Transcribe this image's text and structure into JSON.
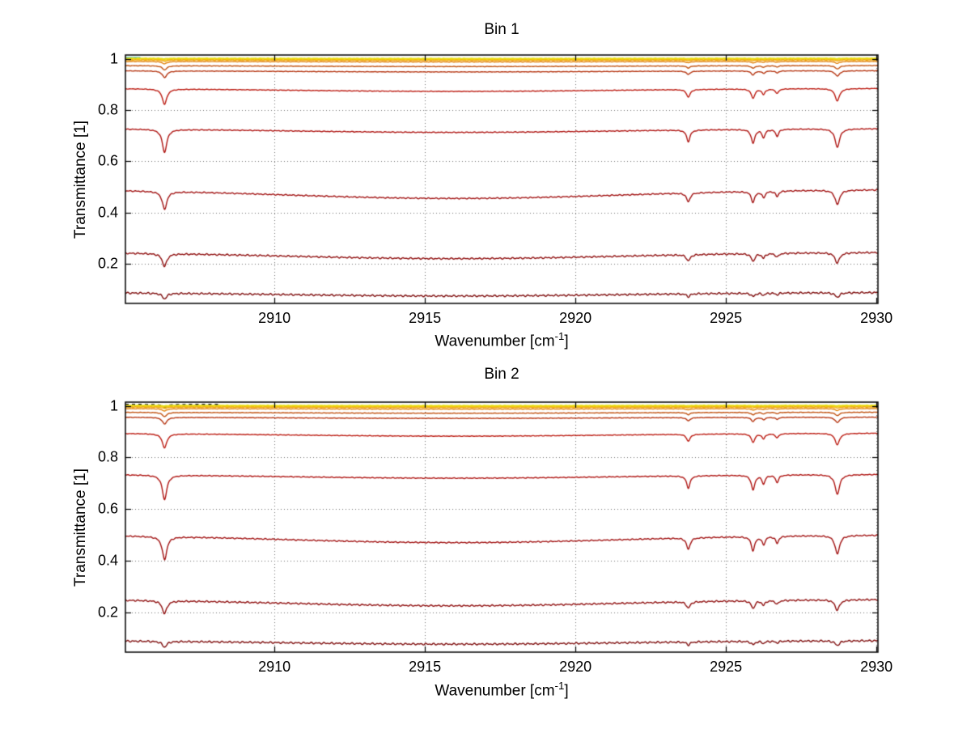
{
  "figure": {
    "background": "#ffffff",
    "grid_color": "#6e6e6e",
    "axis_color": "#000000"
  },
  "chart_data": [
    {
      "type": "line",
      "title": "Bin 1",
      "xlabel_prefix": "Wavenumber [cm",
      "xlabel_sup": "-1",
      "xlabel_suffix": "]",
      "ylabel": "Transmittance [1]",
      "xlim": [
        2905.05,
        2930.05
      ],
      "ylim": [
        0.045,
        1.015
      ],
      "xticks": [
        2910,
        2915,
        2920,
        2925,
        2930
      ],
      "yticks": [
        0.2,
        0.4,
        0.6,
        0.8,
        1
      ],
      "grid": true,
      "absorption_lines": [
        {
          "nu": 2906.35,
          "rel_strength": 1.0,
          "hwhm": 0.09
        },
        {
          "nu": 2923.75,
          "rel_strength": 0.5,
          "hwhm": 0.07
        },
        {
          "nu": 2925.9,
          "rel_strength": 0.6,
          "hwhm": 0.07
        },
        {
          "nu": 2926.25,
          "rel_strength": 0.35,
          "hwhm": 0.06
        },
        {
          "nu": 2926.7,
          "rel_strength": 0.3,
          "hwhm": 0.06
        },
        {
          "nu": 2928.7,
          "rel_strength": 0.8,
          "hwhm": 0.09
        }
      ],
      "continuum": {
        "center": 2916,
        "sigma": 8
      },
      "series": [
        {
          "baseline": 1.004,
          "sag": 0.0,
          "dip": 0.0,
          "color": "#18b29a",
          "xmax": 2905.55,
          "width": 2
        },
        {
          "baseline": 1.002,
          "sag": 0.001,
          "dip": 0.002,
          "color": "#e3e012",
          "width": 2
        },
        {
          "baseline": 0.999,
          "sag": 0.001,
          "dip": 0.003,
          "color": "#f2cf10",
          "width": 1.4
        },
        {
          "baseline": 0.996,
          "sag": 0.002,
          "dip": 0.005,
          "color": "#f0a90e",
          "width": 1.4
        },
        {
          "baseline": 0.99,
          "sag": 0.002,
          "dip": 0.009,
          "color": "#e1820c",
          "width": 1.4
        },
        {
          "baseline": 0.974,
          "sag": 0.004,
          "dip": 0.016,
          "color": "#c0500e",
          "width": 1.4
        },
        {
          "baseline": 0.954,
          "sag": 0.005,
          "dip": 0.026,
          "color": "#b53410",
          "width": 1.4
        },
        {
          "baseline": 0.885,
          "sag": 0.012,
          "dip": 0.06,
          "color": "#bb1a10",
          "width": 1.4
        },
        {
          "baseline": 0.728,
          "sag": 0.015,
          "dip": 0.09,
          "color": "#ae1310",
          "width": 1.4
        },
        {
          "baseline": 0.49,
          "sag": 0.035,
          "dip": 0.07,
          "color": "#a11111",
          "width": 1.4
        },
        {
          "baseline": 0.245,
          "sag": 0.025,
          "dip": 0.05,
          "color": "#8f0e0e",
          "width": 1.4
        },
        {
          "baseline": 0.088,
          "sag": 0.014,
          "dip": 0.022,
          "color": "#7e0c0c",
          "width": 1.4
        }
      ]
    },
    {
      "type": "line",
      "title": "Bin 2",
      "xlabel_prefix": "Wavenumber [cm",
      "xlabel_sup": "-1",
      "xlabel_suffix": "]",
      "ylabel": "Transmittance [1]",
      "xlim": [
        2905.05,
        2930.05
      ],
      "ylim": [
        0.045,
        1.015
      ],
      "xticks": [
        2910,
        2915,
        2920,
        2925,
        2930
      ],
      "yticks": [
        0.2,
        0.4,
        0.6,
        0.8,
        1
      ],
      "grid": true,
      "absorption_lines": [
        {
          "nu": 2906.35,
          "rel_strength": 1.0,
          "hwhm": 0.09
        },
        {
          "nu": 2923.75,
          "rel_strength": 0.5,
          "hwhm": 0.07
        },
        {
          "nu": 2925.9,
          "rel_strength": 0.6,
          "hwhm": 0.07
        },
        {
          "nu": 2926.25,
          "rel_strength": 0.35,
          "hwhm": 0.06
        },
        {
          "nu": 2926.7,
          "rel_strength": 0.3,
          "hwhm": 0.06
        },
        {
          "nu": 2928.7,
          "rel_strength": 0.8,
          "hwhm": 0.09
        }
      ],
      "continuum": {
        "center": 2916,
        "sigma": 8
      },
      "series": [
        {
          "baseline": 1.006,
          "sag": 0.0,
          "dip": 0.012,
          "color": "#141414",
          "xmax": 2908.2,
          "dash": [
            4,
            4
          ],
          "width": 1.6
        },
        {
          "baseline": 1.002,
          "sag": 0.001,
          "dip": 0.002,
          "color": "#e3e012",
          "width": 2
        },
        {
          "baseline": 0.999,
          "sag": 0.001,
          "dip": 0.003,
          "color": "#f2cf10",
          "width": 1.4
        },
        {
          "baseline": 0.996,
          "sag": 0.002,
          "dip": 0.005,
          "color": "#f0a90e",
          "width": 1.4
        },
        {
          "baseline": 0.99,
          "sag": 0.002,
          "dip": 0.009,
          "color": "#e1820c",
          "width": 1.4
        },
        {
          "baseline": 0.976,
          "sag": 0.004,
          "dip": 0.016,
          "color": "#c0500e",
          "width": 1.4
        },
        {
          "baseline": 0.957,
          "sag": 0.005,
          "dip": 0.026,
          "color": "#b53410",
          "width": 1.4
        },
        {
          "baseline": 0.895,
          "sag": 0.012,
          "dip": 0.055,
          "color": "#bb1a10",
          "width": 1.4
        },
        {
          "baseline": 0.735,
          "sag": 0.015,
          "dip": 0.095,
          "color": "#ae1310",
          "width": 1.4
        },
        {
          "baseline": 0.5,
          "sag": 0.03,
          "dip": 0.09,
          "color": "#a11111",
          "width": 1.4
        },
        {
          "baseline": 0.25,
          "sag": 0.025,
          "dip": 0.05,
          "color": "#8f0e0e",
          "width": 1.4
        },
        {
          "baseline": 0.09,
          "sag": 0.014,
          "dip": 0.022,
          "color": "#7e0c0c",
          "width": 1.4
        }
      ]
    }
  ]
}
